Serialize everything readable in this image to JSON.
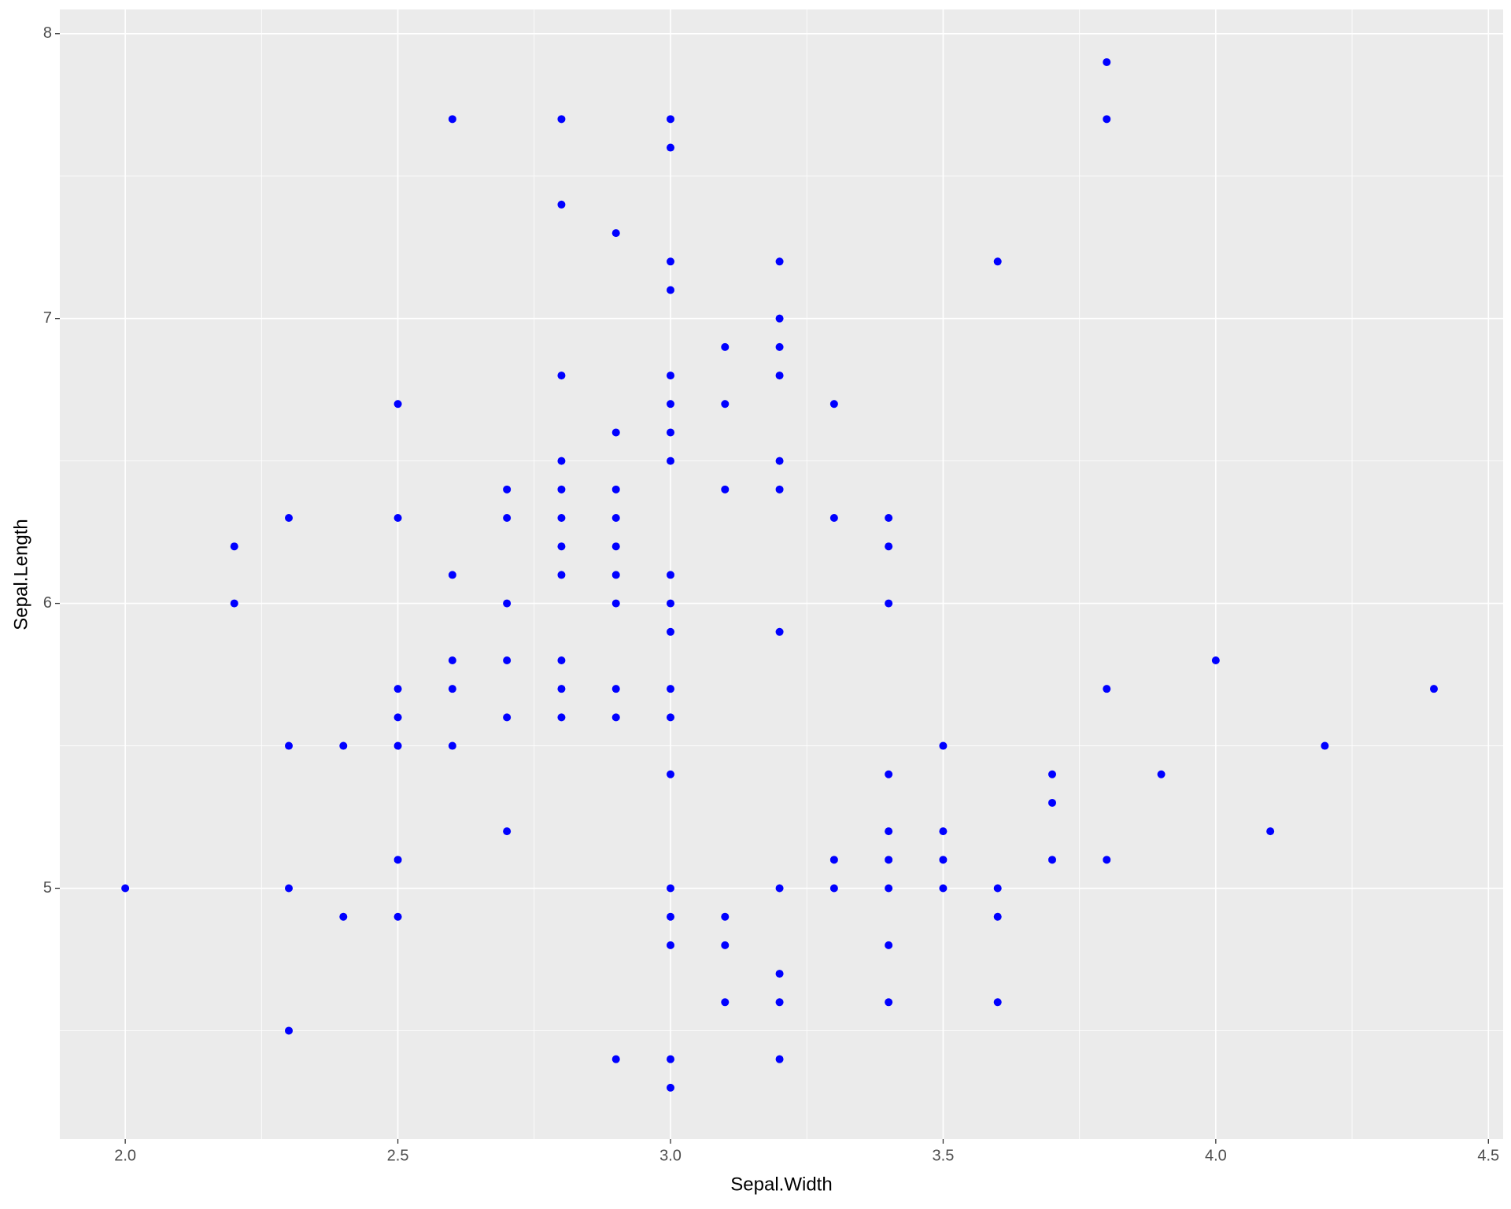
{
  "chart_data": {
    "type": "scatter",
    "x_label": "Sepal.Width",
    "y_label": "Sepal.Length",
    "x": [
      2.0,
      2.2,
      2.2,
      2.3,
      2.3,
      2.3,
      2.3,
      2.4,
      2.4,
      2.5,
      2.5,
      2.5,
      2.5,
      2.5,
      2.5,
      2.5,
      2.6,
      2.6,
      2.6,
      2.6,
      2.6,
      2.7,
      2.7,
      2.7,
      2.7,
      2.7,
      2.7,
      2.8,
      2.8,
      2.8,
      2.8,
      2.8,
      2.8,
      2.8,
      2.8,
      2.8,
      2.8,
      2.8,
      2.9,
      2.9,
      2.9,
      2.9,
      2.9,
      2.9,
      2.9,
      2.9,
      2.9,
      2.9,
      3.0,
      3.0,
      3.0,
      3.0,
      3.0,
      3.0,
      3.0,
      3.0,
      3.0,
      3.0,
      3.0,
      3.0,
      3.0,
      3.0,
      3.0,
      3.0,
      3.0,
      3.0,
      3.0,
      3.1,
      3.1,
      3.1,
      3.1,
      3.1,
      3.1,
      3.2,
      3.2,
      3.2,
      3.2,
      3.2,
      3.2,
      3.2,
      3.2,
      3.2,
      3.2,
      3.2,
      3.3,
      3.3,
      3.3,
      3.3,
      3.4,
      3.4,
      3.4,
      3.4,
      3.4,
      3.4,
      3.4,
      3.4,
      3.4,
      3.5,
      3.5,
      3.5,
      3.5,
      3.6,
      3.6,
      3.6,
      3.6,
      3.7,
      3.7,
      3.7,
      3.8,
      3.8,
      3.8,
      3.8,
      3.9,
      4.0,
      4.1,
      4.2,
      4.4
    ],
    "values": [
      5.0,
      6.2,
      6.0,
      6.3,
      5.5,
      5.0,
      4.5,
      5.5,
      4.9,
      6.7,
      6.3,
      5.7,
      5.6,
      5.5,
      5.1,
      4.9,
      7.7,
      6.1,
      5.8,
      5.7,
      5.5,
      6.4,
      6.3,
      6.0,
      5.8,
      5.6,
      5.2,
      7.7,
      7.4,
      6.8,
      6.5,
      6.4,
      6.3,
      6.2,
      6.1,
      5.8,
      5.7,
      5.6,
      7.3,
      6.6,
      6.4,
      6.3,
      6.2,
      6.1,
      6.0,
      5.7,
      5.6,
      4.4,
      7.7,
      7.6,
      7.2,
      7.1,
      6.8,
      6.7,
      6.6,
      6.5,
      6.1,
      6.0,
      5.9,
      5.7,
      5.6,
      5.4,
      5.0,
      4.9,
      4.8,
      4.4,
      4.3,
      6.9,
      6.7,
      6.4,
      4.9,
      4.8,
      4.6,
      7.2,
      7.0,
      6.9,
      6.8,
      6.5,
      6.4,
      5.9,
      5.0,
      4.7,
      4.6,
      4.4,
      6.7,
      6.3,
      5.1,
      5.0,
      6.3,
      6.2,
      6.0,
      5.4,
      5.2,
      5.1,
      5.0,
      4.8,
      4.6,
      5.5,
      5.2,
      5.1,
      5.0,
      7.2,
      5.0,
      4.9,
      4.6,
      5.4,
      5.3,
      5.1,
      7.9,
      7.7,
      5.7,
      5.1,
      5.4,
      5.8,
      5.2,
      5.5,
      5.7
    ],
    "color": "#0000ff",
    "xlim": [
      1.88,
      4.527
    ],
    "ylim": [
      4.12,
      8.085
    ],
    "xticks": [
      {
        "value": 2,
        "label": "2.0"
      },
      2.5,
      {
        "value": 3,
        "label": "3.0"
      },
      3.5,
      {
        "value": 4,
        "label": "4.0"
      },
      4.5
    ],
    "yticks": [
      5,
      6,
      7,
      8
    ],
    "x_minor_ticks": [
      2.25,
      2.75,
      3.25,
      3.75,
      4.25
    ],
    "y_minor_ticks": [
      4.5,
      5.5,
      6.5,
      7.5
    ],
    "grid": true
  }
}
